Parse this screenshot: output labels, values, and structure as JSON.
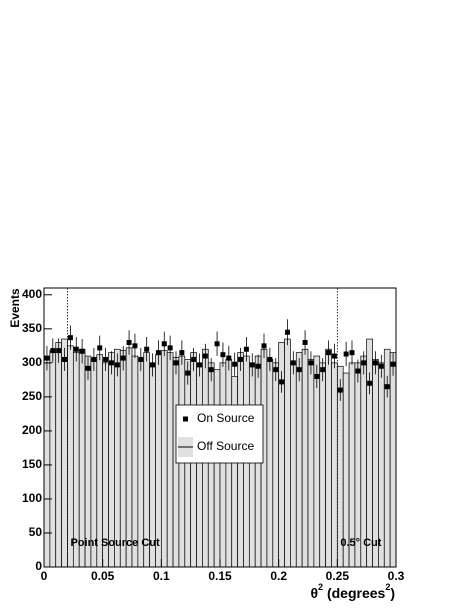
{
  "chart_data": {
    "type": "histogram",
    "x_label": [
      "θ",
      "2",
      " (degrees",
      "2",
      ")"
    ],
    "y_label": "Events",
    "xlim": [
      0,
      0.3
    ],
    "xticks": [
      0,
      0.05,
      0.1,
      0.15,
      0.2,
      0.25,
      0.3
    ],
    "ylim": [
      0,
      410
    ],
    "yticks": [
      0,
      50,
      100,
      150,
      200,
      250,
      300,
      350,
      400
    ],
    "cuts": [
      0.02,
      0.25
    ],
    "annotations": [
      "Point Source Cut",
      "0.5° Cut"
    ],
    "series": [
      {
        "name": "Off Source",
        "type": "histogram",
        "color": "#e0e0e0",
        "bins": [
          0,
          0.005,
          0.01,
          0.015,
          0.02,
          0.025,
          0.03,
          0.035,
          0.04,
          0.045,
          0.05,
          0.055,
          0.06,
          0.065,
          0.07,
          0.075,
          0.08,
          0.085,
          0.09,
          0.095,
          0.1,
          0.105,
          0.11,
          0.115,
          0.12,
          0.125,
          0.13,
          0.135,
          0.14,
          0.145,
          0.15,
          0.155,
          0.16,
          0.165,
          0.17,
          0.175,
          0.18,
          0.185,
          0.19,
          0.195,
          0.2,
          0.205,
          0.21,
          0.215,
          0.22,
          0.225,
          0.23,
          0.235,
          0.24,
          0.245,
          0.25,
          0.255,
          0.26,
          0.265,
          0.27,
          0.275,
          0.28,
          0.285,
          0.29,
          0.295,
          0.3
        ],
        "values": [
          300,
          318,
          330,
          335,
          325,
          315,
          320,
          310,
          305,
          312,
          300,
          315,
          320,
          318,
          322,
          310,
          305,
          315,
          300,
          312,
          318,
          315,
          308,
          310,
          305,
          315,
          300,
          320,
          300,
          290,
          300,
          305,
          280,
          315,
          310,
          300,
          310,
          320,
          305,
          300,
          330,
          335,
          300,
          315,
          320,
          305,
          310,
          300,
          320,
          300,
          295,
          285,
          300,
          300,
          310,
          335,
          305,
          300,
          320,
          315
        ]
      },
      {
        "name": "On Source",
        "type": "scatter",
        "color": "#000000",
        "x": [
          0.0025,
          0.0075,
          0.0125,
          0.0175,
          0.0225,
          0.0275,
          0.0325,
          0.0375,
          0.0425,
          0.0475,
          0.0525,
          0.0575,
          0.0625,
          0.0675,
          0.0725,
          0.0775,
          0.0825,
          0.0875,
          0.0925,
          0.0975,
          0.1025,
          0.1075,
          0.1125,
          0.1175,
          0.1225,
          0.1275,
          0.1325,
          0.1375,
          0.1425,
          0.1475,
          0.1525,
          0.1575,
          0.1625,
          0.1675,
          0.1725,
          0.1775,
          0.1825,
          0.1875,
          0.1925,
          0.1975,
          0.2025,
          0.2075,
          0.2125,
          0.2175,
          0.2225,
          0.2275,
          0.2325,
          0.2375,
          0.2425,
          0.2475,
          0.2525,
          0.2575,
          0.2625,
          0.2675,
          0.2725,
          0.2775,
          0.2825,
          0.2875,
          0.2925,
          0.2975
        ],
        "values": [
          307,
          318,
          318,
          305,
          337,
          320,
          317,
          292,
          305,
          322,
          305,
          300,
          297,
          307,
          330,
          325,
          305,
          320,
          297,
          315,
          328,
          322,
          300,
          315,
          285,
          305,
          297,
          310,
          290,
          328,
          312,
          307,
          298,
          305,
          320,
          297,
          295,
          325,
          305,
          290,
          272,
          345,
          300,
          290,
          330,
          300,
          280,
          290,
          315,
          310,
          260,
          313,
          315,
          288,
          300,
          270,
          300,
          295,
          265,
          298
        ],
        "errors": [
          18,
          18,
          18,
          17,
          18,
          18,
          18,
          17,
          17,
          18,
          17,
          17,
          17,
          18,
          18,
          18,
          17,
          18,
          17,
          18,
          18,
          18,
          17,
          18,
          17,
          17,
          17,
          18,
          17,
          18,
          18,
          18,
          17,
          17,
          18,
          17,
          17,
          18,
          17,
          17,
          16,
          19,
          17,
          17,
          18,
          17,
          17,
          17,
          18,
          18,
          16,
          18,
          18,
          17,
          17,
          16,
          17,
          17,
          16,
          17
        ]
      }
    ]
  }
}
